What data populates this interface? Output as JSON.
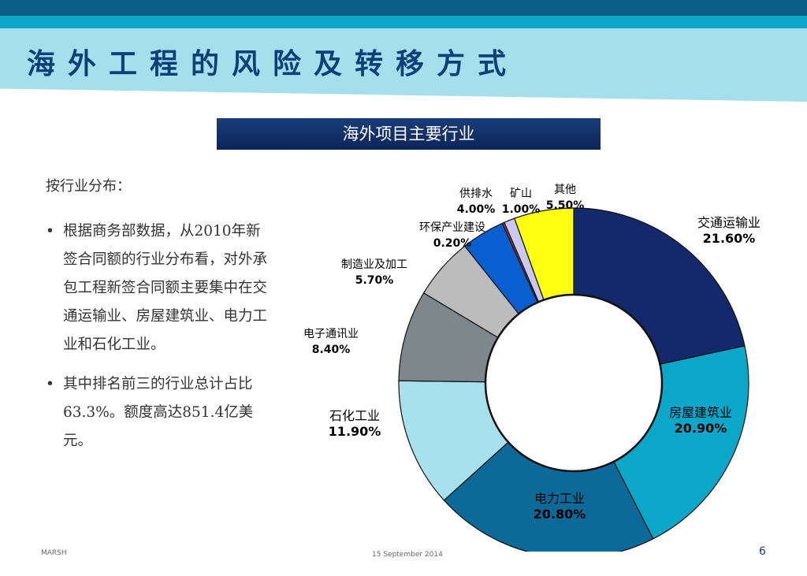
{
  "header": {
    "title": "海外工程的风险及转移方式",
    "section": "海外项目主要行业"
  },
  "left": {
    "subtitle": "按行业分布：",
    "bullets": [
      "根据商务部数据，从2010年新签合同额的行业分布看，对外承包工程新签合同额主要集中在交通运输业、房屋建筑业、电力工业和石化工业。",
      "其中排名前三的行业总计占比63.3%。额度高达851.4亿美元。"
    ]
  },
  "chart_data": {
    "type": "pie",
    "donut": true,
    "categories": [
      "交通运输业",
      "房屋建筑业",
      "电力工业",
      "石化工业",
      "电子通讯业",
      "制造业及加工",
      "供排水",
      "环保产业建设",
      "矿山",
      "其他"
    ],
    "values": [
      21.6,
      20.9,
      20.8,
      11.9,
      8.4,
      5.7,
      4.0,
      0.2,
      1.0,
      5.5
    ],
    "labels": [
      "21.60%",
      "20.90%",
      "20.80%",
      "11.90%",
      "8.40%",
      "5.70%",
      "4.00%",
      "0.20%",
      "1.00%",
      "5.50%"
    ],
    "colors": [
      "#13296b",
      "#0aa7c9",
      "#0c6a99",
      "#a8e1ee",
      "#7e878c",
      "#bcbcbc",
      "#0a5fd0",
      "#a33840",
      "#c8c8f0",
      "#ffff12"
    ]
  },
  "footer": {
    "left": "MARSH",
    "date": "15 September 2014",
    "page": "6"
  }
}
